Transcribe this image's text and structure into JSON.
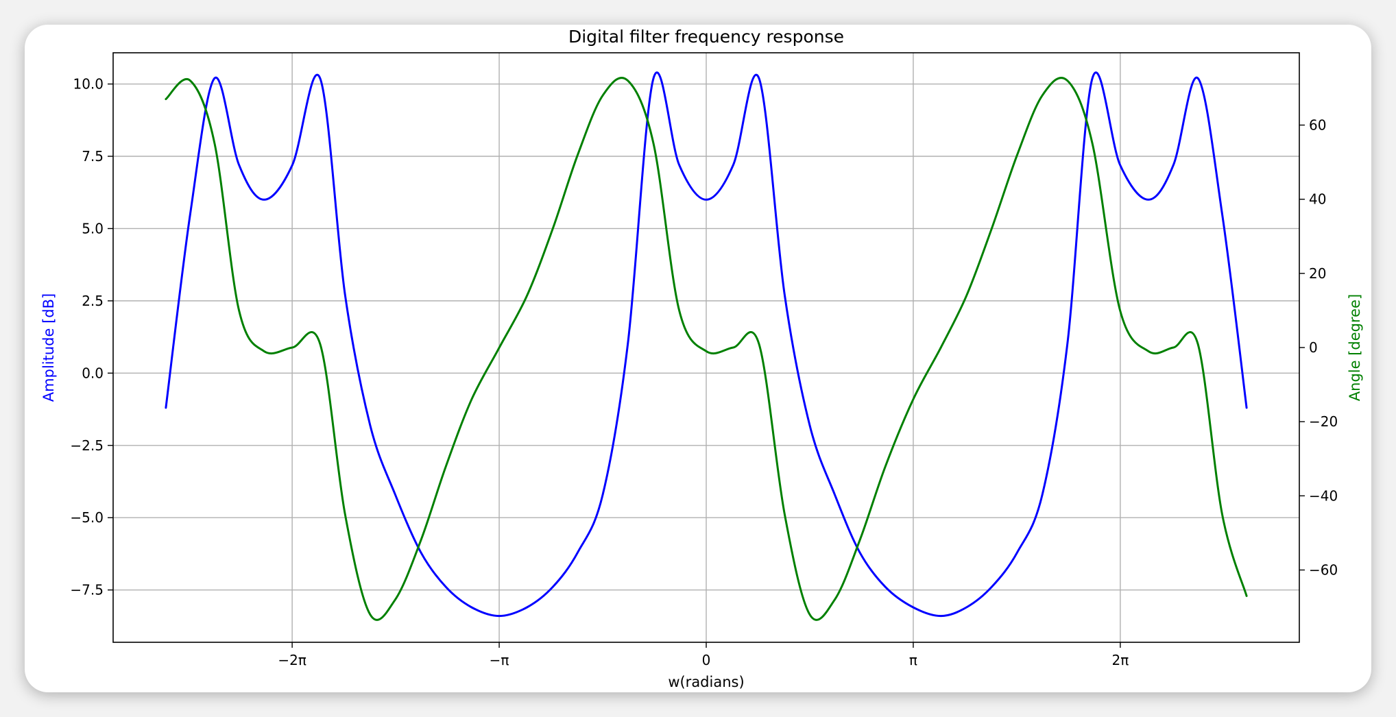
{
  "chart_data": {
    "type": "line",
    "title": "Digital filter frequency response",
    "xlabel": "w(radians)",
    "ylabel_left": "Amplitude [dB]",
    "ylabel_right": "Angle [degree]",
    "xlim": [
      -9.0,
      9.0
    ],
    "ylim_left": [
      -9.31,
      11.08
    ],
    "ylim_right": [
      -79.5,
      79.5
    ],
    "x_ticks": [
      {
        "value": -6.2832,
        "label": "−2π"
      },
      {
        "value": -3.1416,
        "label": "−π"
      },
      {
        "value": 0,
        "label": "0"
      },
      {
        "value": 3.1416,
        "label": "π"
      },
      {
        "value": 6.2832,
        "label": "2π"
      }
    ],
    "y_ticks_left": [
      {
        "value": 10.0,
        "label": "10.0"
      },
      {
        "value": 7.5,
        "label": "7.5"
      },
      {
        "value": 5.0,
        "label": "5.0"
      },
      {
        "value": 2.5,
        "label": "2.5"
      },
      {
        "value": 0.0,
        "label": "0.0"
      },
      {
        "value": -2.5,
        "label": "−2.5"
      },
      {
        "value": -5.0,
        "label": "−5.0"
      },
      {
        "value": -7.5,
        "label": "−7.5"
      }
    ],
    "y_ticks_right": [
      {
        "value": 60,
        "label": "60"
      },
      {
        "value": 40,
        "label": "40"
      },
      {
        "value": 20,
        "label": "20"
      },
      {
        "value": 0,
        "label": "0"
      },
      {
        "value": -20,
        "label": "−20"
      },
      {
        "value": -40,
        "label": "−40"
      },
      {
        "value": -60,
        "label": "−60"
      }
    ],
    "grid": true,
    "series": [
      {
        "axis": "left",
        "color": "#0000ff",
        "x": [
          -8.2,
          -7.83,
          -7.46,
          -7.09,
          -6.71,
          -6.28,
          -5.86,
          -5.48,
          -5.1,
          -4.72,
          -4.33,
          -3.95,
          -3.56,
          -3.14,
          -2.72,
          -2.33,
          -1.95,
          -1.57,
          -1.19,
          -0.8,
          -0.41,
          0,
          0.41,
          0.8,
          1.19,
          1.57,
          1.95,
          2.33,
          2.72,
          3.14,
          3.56,
          3.95,
          4.33,
          4.72,
          5.1,
          5.48,
          5.86,
          6.28,
          6.71,
          7.09,
          7.46,
          7.83,
          8.2
        ],
        "y": [
          -1.2,
          5.5,
          10.2,
          7.2,
          6.0,
          7.2,
          10.2,
          2.7,
          -1.8,
          -4.2,
          -6.2,
          -7.4,
          -8.1,
          -8.4,
          -8.1,
          -7.4,
          -6.2,
          -4.2,
          1.0,
          10.2,
          7.2,
          6.0,
          7.2,
          10.2,
          2.7,
          -1.8,
          -4.2,
          -6.2,
          -7.4,
          -8.1,
          -8.4,
          -8.1,
          -7.4,
          -6.2,
          -4.2,
          1.0,
          10.2,
          7.2,
          6.0,
          7.2,
          10.2,
          5.5,
          -1.2
        ]
      },
      {
        "axis": "right",
        "color": "#008000",
        "x": [
          -8.2,
          -7.83,
          -7.46,
          -7.09,
          -6.71,
          -6.28,
          -5.86,
          -5.48,
          -5.1,
          -4.72,
          -4.33,
          -3.95,
          -3.56,
          -3.14,
          -2.72,
          -2.33,
          -1.95,
          -1.57,
          -1.19,
          -0.8,
          -0.41,
          0,
          0.41,
          0.8,
          1.19,
          1.57,
          1.95,
          2.33,
          2.72,
          3.14,
          3.56,
          3.95,
          4.33,
          4.72,
          5.1,
          5.48,
          5.86,
          6.28,
          6.71,
          7.09,
          7.46,
          7.83,
          8.2
        ],
        "y": [
          67,
          72,
          55,
          10,
          -1,
          0,
          1,
          -45,
          -72,
          -68,
          -52,
          -32,
          -14,
          0,
          14,
          32,
          52,
          68,
          72,
          55,
          10,
          -1,
          0,
          1,
          -45,
          -72,
          -68,
          -52,
          -32,
          -14,
          0,
          14,
          32,
          52,
          68,
          72,
          55,
          10,
          -1,
          0,
          1,
          -45,
          -67
        ]
      }
    ]
  }
}
